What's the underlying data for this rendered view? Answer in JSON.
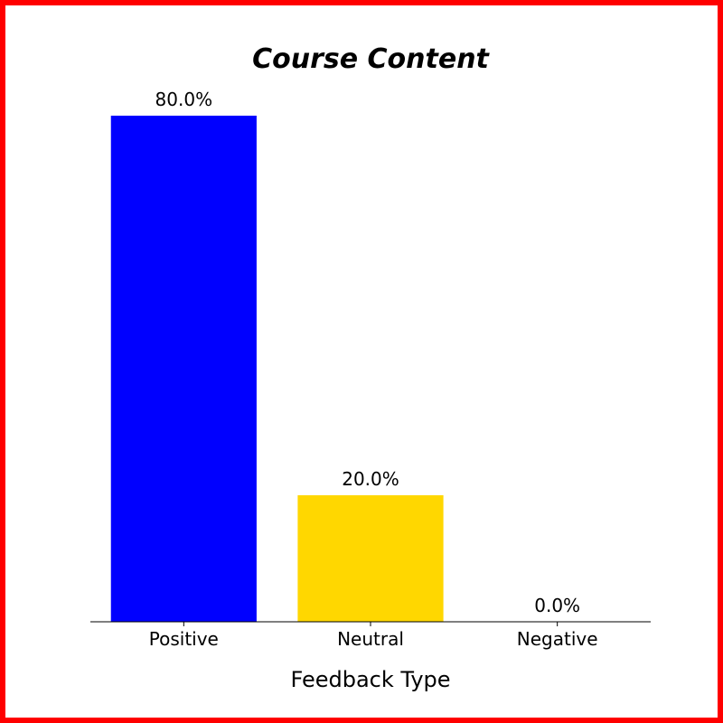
{
  "chart_data": {
    "type": "bar",
    "title": "Course Content",
    "xlabel": "Feedback Type",
    "ylabel": "",
    "categories": [
      "Positive",
      "Neutral",
      "Negative"
    ],
    "values": [
      80.0,
      20.0,
      0.0
    ],
    "value_labels": [
      "80.0%",
      "20.0%",
      "0.0%"
    ],
    "ylim": [
      0,
      84
    ],
    "colors": [
      "#0000ff",
      "#ffd700",
      "#ff0000"
    ],
    "grid": false,
    "legend": "none"
  },
  "style": {
    "frame_color": "#ff0000",
    "background": "#ffffff",
    "axis_color": "#000000"
  }
}
